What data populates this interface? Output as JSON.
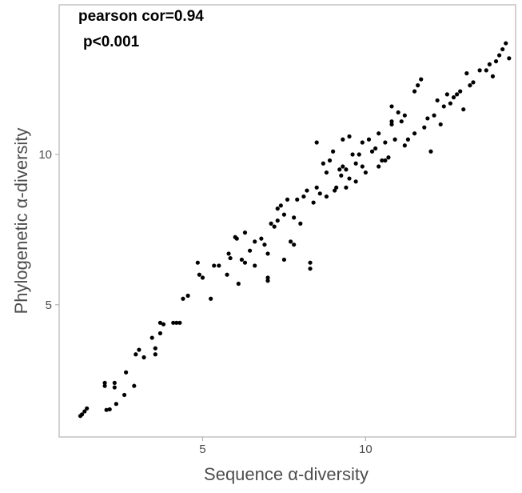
{
  "chart_data": {
    "type": "scatter",
    "title": "",
    "annotations": [
      "pearson cor=0.94",
      "p<0.001"
    ],
    "xlabel": "Sequence α-diversity",
    "ylabel": "Phylogenetic  α-diversity",
    "xlim": [
      0.6,
      14.6
    ],
    "ylim": [
      0.6,
      14.98
    ],
    "xticks": [
      5,
      10
    ],
    "yticks": [
      5,
      10
    ],
    "grid": false,
    "legend": "none",
    "point_color": "#000000",
    "points": [
      [
        1.25,
        1.3
      ],
      [
        1.3,
        1.35
      ],
      [
        1.38,
        1.45
      ],
      [
        1.45,
        1.55
      ],
      [
        2.0,
        2.4
      ],
      [
        2.0,
        2.3
      ],
      [
        2.05,
        1.5
      ],
      [
        2.15,
        1.52
      ],
      [
        2.3,
        2.4
      ],
      [
        2.3,
        2.25
      ],
      [
        2.35,
        1.7
      ],
      [
        2.6,
        2.0
      ],
      [
        2.65,
        2.75
      ],
      [
        2.9,
        2.3
      ],
      [
        2.95,
        3.35
      ],
      [
        3.05,
        3.5
      ],
      [
        3.2,
        3.25
      ],
      [
        3.45,
        3.9
      ],
      [
        3.55,
        3.35
      ],
      [
        3.55,
        3.55
      ],
      [
        3.7,
        4.4
      ],
      [
        3.7,
        4.05
      ],
      [
        3.8,
        4.35
      ],
      [
        4.1,
        4.4
      ],
      [
        4.2,
        4.4
      ],
      [
        4.3,
        4.4
      ],
      [
        4.4,
        5.2
      ],
      [
        4.55,
        5.3
      ],
      [
        4.85,
        6.4
      ],
      [
        4.9,
        6.0
      ],
      [
        5.0,
        5.9
      ],
      [
        5.25,
        5.2
      ],
      [
        5.35,
        6.3
      ],
      [
        5.5,
        6.3
      ],
      [
        5.75,
        6.0
      ],
      [
        5.8,
        6.7
      ],
      [
        5.85,
        6.55
      ],
      [
        6.0,
        7.25
      ],
      [
        6.05,
        7.2
      ],
      [
        6.1,
        5.7
      ],
      [
        6.2,
        6.5
      ],
      [
        6.3,
        6.4
      ],
      [
        6.3,
        7.4
      ],
      [
        6.45,
        6.8
      ],
      [
        6.6,
        6.3
      ],
      [
        6.6,
        7.1
      ],
      [
        6.8,
        7.2
      ],
      [
        6.9,
        7.0
      ],
      [
        7.0,
        6.7
      ],
      [
        7.0,
        5.8
      ],
      [
        7.0,
        5.9
      ],
      [
        7.1,
        7.7
      ],
      [
        7.2,
        7.6
      ],
      [
        7.3,
        7.8
      ],
      [
        7.3,
        8.2
      ],
      [
        7.4,
        8.3
      ],
      [
        7.5,
        8.0
      ],
      [
        7.5,
        6.5
      ],
      [
        7.6,
        8.5
      ],
      [
        7.7,
        7.1
      ],
      [
        7.8,
        7.0
      ],
      [
        7.8,
        7.9
      ],
      [
        7.9,
        8.5
      ],
      [
        8.0,
        7.7
      ],
      [
        8.1,
        8.6
      ],
      [
        8.2,
        8.8
      ],
      [
        8.3,
        6.2
      ],
      [
        8.3,
        6.4
      ],
      [
        8.4,
        8.4
      ],
      [
        8.5,
        8.9
      ],
      [
        8.5,
        10.4
      ],
      [
        8.6,
        8.7
      ],
      [
        8.7,
        9.7
      ],
      [
        8.8,
        9.4
      ],
      [
        8.8,
        8.6
      ],
      [
        8.9,
        9.8
      ],
      [
        9.0,
        10.1
      ],
      [
        9.05,
        8.8
      ],
      [
        9.1,
        8.9
      ],
      [
        9.2,
        9.5
      ],
      [
        9.25,
        9.3
      ],
      [
        9.3,
        9.6
      ],
      [
        9.3,
        10.5
      ],
      [
        9.4,
        8.9
      ],
      [
        9.4,
        9.5
      ],
      [
        9.5,
        9.2
      ],
      [
        9.5,
        10.6
      ],
      [
        9.6,
        10.0
      ],
      [
        9.7,
        9.7
      ],
      [
        9.7,
        9.1
      ],
      [
        9.8,
        10.0
      ],
      [
        9.9,
        9.6
      ],
      [
        9.9,
        10.4
      ],
      [
        10.0,
        9.4
      ],
      [
        10.1,
        10.5
      ],
      [
        10.2,
        10.1
      ],
      [
        10.3,
        10.2
      ],
      [
        10.4,
        9.6
      ],
      [
        10.4,
        10.7
      ],
      [
        10.5,
        9.8
      ],
      [
        10.6,
        9.8
      ],
      [
        10.6,
        10.4
      ],
      [
        10.7,
        9.9
      ],
      [
        10.8,
        11.1
      ],
      [
        10.8,
        11.0
      ],
      [
        10.8,
        11.6
      ],
      [
        10.9,
        10.5
      ],
      [
        11.0,
        11.4
      ],
      [
        11.1,
        11.1
      ],
      [
        11.2,
        11.3
      ],
      [
        11.2,
        10.3
      ],
      [
        11.3,
        10.5
      ],
      [
        11.5,
        10.7
      ],
      [
        11.5,
        12.1
      ],
      [
        11.6,
        12.3
      ],
      [
        11.7,
        12.5
      ],
      [
        11.8,
        10.9
      ],
      [
        11.9,
        11.2
      ],
      [
        12.0,
        10.1
      ],
      [
        12.1,
        11.3
      ],
      [
        12.2,
        11.8
      ],
      [
        12.3,
        11.0
      ],
      [
        12.4,
        11.6
      ],
      [
        12.5,
        12.0
      ],
      [
        12.6,
        11.7
      ],
      [
        12.7,
        11.9
      ],
      [
        12.8,
        12.0
      ],
      [
        12.9,
        12.1
      ],
      [
        13.0,
        11.5
      ],
      [
        13.1,
        12.7
      ],
      [
        13.2,
        12.3
      ],
      [
        13.3,
        12.4
      ],
      [
        13.5,
        12.8
      ],
      [
        13.7,
        12.8
      ],
      [
        13.8,
        13.0
      ],
      [
        13.9,
        12.6
      ],
      [
        14.0,
        13.1
      ],
      [
        14.1,
        13.3
      ],
      [
        14.2,
        13.5
      ],
      [
        14.3,
        13.7
      ],
      [
        14.4,
        13.2
      ]
    ]
  }
}
